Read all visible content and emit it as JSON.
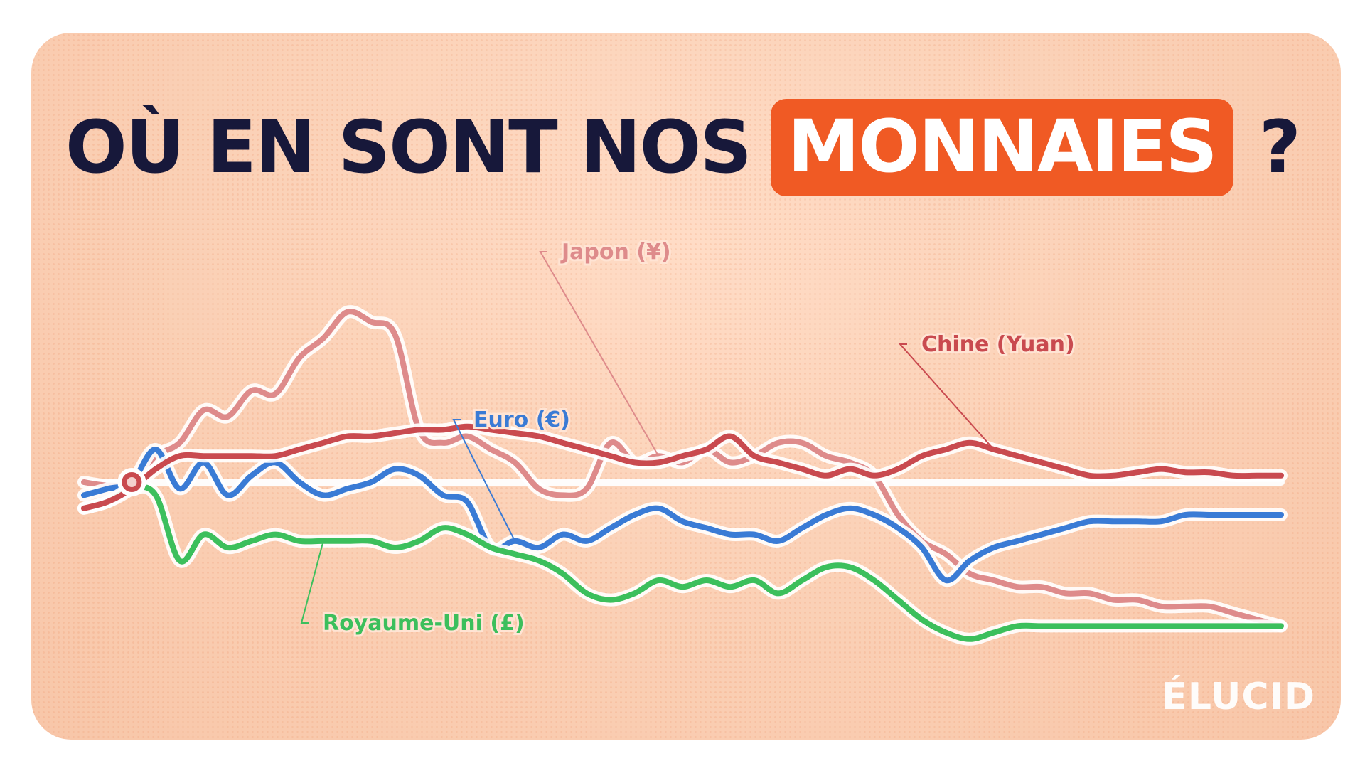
{
  "title": {
    "prefix": "OÙ EN SONT NOS",
    "highlight": "MONNAIES",
    "suffix": "?"
  },
  "logo": "ÉLUCID",
  "colors": {
    "accent": "#f05a24",
    "title_text": "#17183a"
  },
  "chart_data": {
    "type": "line",
    "title": "OÙ EN SONT NOS MONNAIES ?",
    "xlabel": "",
    "ylabel": "",
    "grid": false,
    "ylim": [
      -100,
      100
    ],
    "x": [
      0,
      2,
      4,
      6,
      8,
      10,
      12,
      14,
      16,
      18,
      20,
      22,
      24,
      26,
      28,
      30,
      32,
      34,
      36,
      38,
      40,
      42,
      44,
      46,
      48,
      50,
      52,
      54,
      56,
      58,
      60,
      62,
      64,
      66,
      68,
      70,
      72,
      74,
      76,
      78,
      80,
      82,
      84,
      86,
      88,
      90,
      92,
      94,
      96,
      98,
      100
    ],
    "baseline": 0,
    "origin_marker_x": 4,
    "series": [
      {
        "name": "Japon (¥)",
        "color": "#de8b8b",
        "values": [
          0,
          -1,
          0,
          8,
          12,
          22,
          20,
          28,
          27,
          38,
          44,
          52,
          49,
          45,
          16,
          12,
          14,
          10,
          6,
          -2,
          -4,
          -2,
          12,
          6,
          8,
          6,
          10,
          6,
          8,
          12,
          12,
          8,
          6,
          2,
          -10,
          -18,
          -22,
          -28,
          -30,
          -32,
          -32,
          -34,
          -34,
          -36,
          -36,
          -38,
          -38,
          -38,
          -40,
          -42,
          -44
        ]
      },
      {
        "name": "Chine (Yuan)",
        "color": "#c94a4f",
        "values": [
          -8,
          -6,
          -2,
          4,
          8,
          8,
          8,
          8,
          8,
          10,
          12,
          14,
          14,
          15,
          16,
          16,
          17,
          16,
          15,
          14,
          12,
          10,
          8,
          6,
          6,
          8,
          10,
          14,
          8,
          6,
          4,
          2,
          4,
          2,
          4,
          8,
          10,
          12,
          10,
          8,
          6,
          4,
          2,
          2,
          3,
          4,
          3,
          3,
          2,
          2,
          2
        ]
      },
      {
        "name": "Euro (€)",
        "color": "#3a7bd5",
        "values": [
          -4,
          -2,
          0,
          10,
          -2,
          6,
          -4,
          2,
          6,
          0,
          -4,
          -2,
          0,
          4,
          2,
          -4,
          -6,
          -20,
          -18,
          -20,
          -16,
          -18,
          -14,
          -10,
          -8,
          -12,
          -14,
          -16,
          -16,
          -18,
          -14,
          -10,
          -8,
          -10,
          -14,
          -20,
          -30,
          -24,
          -20,
          -18,
          -16,
          -14,
          -12,
          -12,
          -12,
          -12,
          -10,
          -10,
          -10,
          -10,
          -10
        ]
      },
      {
        "name": "Royaume-Uni (£)",
        "color": "#3cbf5c",
        "values": [
          -8,
          -6,
          -2,
          -4,
          -24,
          -16,
          -20,
          -18,
          -16,
          -18,
          -18,
          -18,
          -18,
          -20,
          -18,
          -14,
          -16,
          -20,
          -22,
          -24,
          -28,
          -34,
          -36,
          -34,
          -30,
          -32,
          -30,
          -32,
          -30,
          -34,
          -30,
          -26,
          -26,
          -30,
          -36,
          -42,
          -46,
          -48,
          -46,
          -44,
          -44,
          -44,
          -44,
          -44,
          -44,
          -44,
          -44,
          -44,
          -44,
          -44,
          -44
        ]
      }
    ],
    "series_label_order": [
      "Japon (¥)",
      "Chine (Yuan)",
      "Euro (€)",
      "Royaume-Uni (£)"
    ]
  }
}
